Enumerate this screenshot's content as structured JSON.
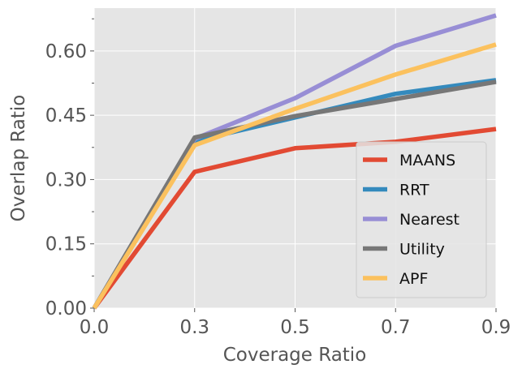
{
  "chart_data": {
    "type": "line",
    "title": "",
    "xlabel": "Coverage Ratio",
    "ylabel": "Overlap Ratio",
    "xlim": [
      0.0,
      0.9
    ],
    "ylim": [
      0.0,
      0.7
    ],
    "xticks": [
      0.0,
      0.3,
      0.5,
      0.7,
      0.9
    ],
    "xtick_labels": [
      "0.0",
      "0.3",
      "0.5",
      "0.7",
      "0.9"
    ],
    "yticks": [
      0.0,
      0.15,
      0.3,
      0.45,
      0.6
    ],
    "ytick_labels": [
      "0.00",
      "0.15",
      "0.30",
      "0.45",
      "0.60"
    ],
    "grid": true,
    "legend_position": "bottom-right",
    "x_positions": [
      0.0,
      1.0,
      2.0,
      3.0,
      4.0
    ],
    "x": [
      0.0,
      0.3,
      0.5,
      0.7,
      0.9
    ],
    "series": [
      {
        "name": "MAANS",
        "color": "#e24a33",
        "values": [
          0.0,
          0.318,
          0.373,
          0.388,
          0.418
        ]
      },
      {
        "name": "RRT",
        "color": "#348abd",
        "values": [
          0.0,
          0.39,
          0.445,
          0.5,
          0.532
        ]
      },
      {
        "name": "Nearest",
        "color": "#988ed5",
        "values": [
          0.0,
          0.395,
          0.49,
          0.612,
          0.683
        ]
      },
      {
        "name": "Utility",
        "color": "#777777",
        "values": [
          0.0,
          0.398,
          0.448,
          0.488,
          0.528
        ]
      },
      {
        "name": "APF",
        "color": "#fbc15e",
        "values": [
          0.0,
          0.38,
          0.465,
          0.545,
          0.615
        ]
      }
    ]
  }
}
